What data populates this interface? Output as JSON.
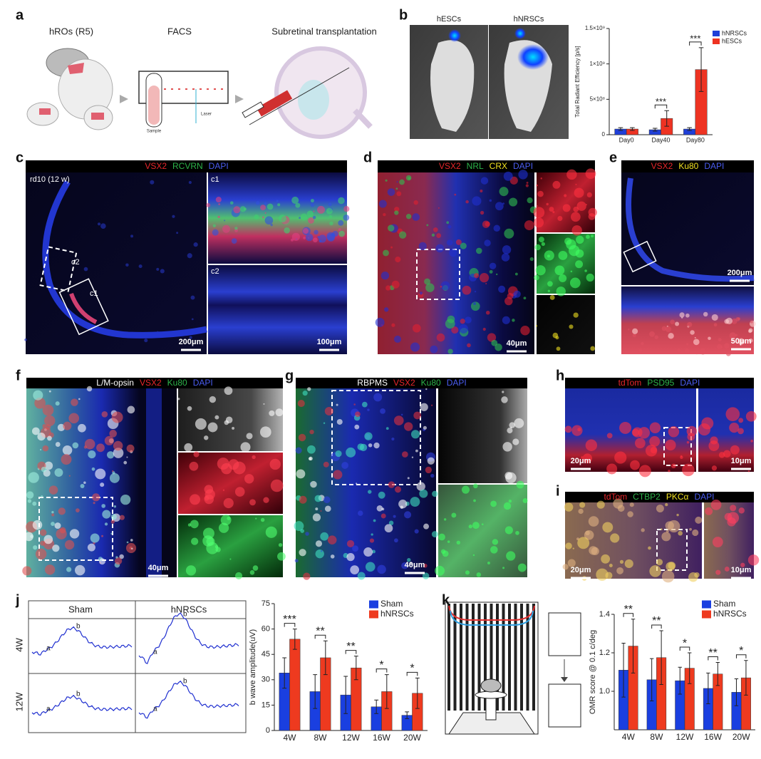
{
  "figure": {
    "a": {
      "label": "a",
      "steps": [
        "hROs (R5)",
        "FACS",
        "Subretinal transplantation"
      ],
      "sample": "Sample",
      "laser": "Laser"
    },
    "b": {
      "label": "b",
      "image_labels": [
        "hESCs",
        "hNRSCs"
      ],
      "chart": {
        "type": "bar",
        "ylabel": "Total Radiant Efficiency [p/s]",
        "categories": [
          "Day0",
          "Day40",
          "Day80"
        ],
        "series": [
          {
            "name": "hNRSCs",
            "color": "#1f3fd8",
            "values": [
              80000000,
              70000000,
              80000000
            ],
            "errors": [
              20000000,
              20000000,
              20000000
            ]
          },
          {
            "name": "hESCs",
            "color": "#ee3322",
            "values": [
              80000000,
              230000000,
              920000000
            ],
            "errors": [
              20000000,
              110000000,
              310000000
            ]
          }
        ],
        "significance": [
          null,
          "***",
          "***"
        ],
        "ylim": [
          0,
          1500000000
        ],
        "yticks": [
          0,
          {
            "value": 500000000,
            "label": "5×10⁸"
          },
          {
            "value": 1000000000,
            "label": "1×10⁹"
          },
          {
            "value": 1500000000,
            "label": "1.5×10⁹"
          }
        ],
        "legend": "upper right"
      }
    },
    "c": {
      "label": "c",
      "channels": [
        {
          "text": "VSX2",
          "color": "#e8262b"
        },
        {
          "text": "RCVRN",
          "color": "#2db34a"
        },
        {
          "text": "DAPI",
          "color": "#4a5cf0"
        }
      ],
      "insets": [
        "rd10 (12 w)",
        "c1",
        "c2"
      ],
      "scale_bars": [
        "200μm",
        "100μm"
      ]
    },
    "d": {
      "label": "d",
      "channels": [
        {
          "text": "VSX2",
          "color": "#e8262b"
        },
        {
          "text": "NRL",
          "color": "#2db34a"
        },
        {
          "text": "CRX",
          "color": "#f0e020"
        },
        {
          "text": "DAPI",
          "color": "#4a5cf0"
        }
      ],
      "scale_bars": [
        "40μm"
      ]
    },
    "e": {
      "label": "e",
      "channels": [
        {
          "text": "VSX2",
          "color": "#e8262b"
        },
        {
          "text": "Ku80",
          "color": "#f0e020"
        },
        {
          "text": "DAPI",
          "color": "#4a5cf0"
        }
      ],
      "scale_bars": [
        "200μm",
        "50μm"
      ]
    },
    "f": {
      "label": "f",
      "channels": [
        {
          "text": "L/M-opsin",
          "color": "#ffffff"
        },
        {
          "text": "VSX2",
          "color": "#e8262b"
        },
        {
          "text": "Ku80",
          "color": "#2db34a"
        },
        {
          "text": "DAPI",
          "color": "#4a5cf0"
        }
      ],
      "scale_bars": [
        "40μm"
      ]
    },
    "g": {
      "label": "g",
      "channels": [
        {
          "text": "RBPMS",
          "color": "#ffffff"
        },
        {
          "text": "VSX2",
          "color": "#e8262b"
        },
        {
          "text": "Ku80",
          "color": "#2db34a"
        },
        {
          "text": "DAPI",
          "color": "#4a5cf0"
        }
      ],
      "scale_bars": [
        "40μm"
      ]
    },
    "h": {
      "label": "h",
      "channels": [
        {
          "text": "tdTom",
          "color": "#e8262b"
        },
        {
          "text": "PSD95",
          "color": "#2db34a"
        },
        {
          "text": "DAPI",
          "color": "#4a5cf0"
        }
      ],
      "scale_bars": [
        "20μm",
        "10μm"
      ]
    },
    "i": {
      "label": "i",
      "channels": [
        {
          "text": "tdTom",
          "color": "#e8262b"
        },
        {
          "text": "CTBP2",
          "color": "#2db34a"
        },
        {
          "text": "PKCα",
          "color": "#f0e020"
        },
        {
          "text": "DAPI",
          "color": "#4a5cf0"
        }
      ],
      "scale_bars": [
        "20μm",
        "10μm"
      ]
    },
    "j": {
      "label": "j",
      "columns": [
        "Sham",
        "hNRSCs"
      ],
      "rows": [
        "4W",
        "12W"
      ],
      "trace_labels": [
        "a",
        "b"
      ],
      "chart": {
        "type": "bar",
        "ylabel": "b wave amplitude(uV)",
        "categories": [
          "4W",
          "8W",
          "12W",
          "16W",
          "20W"
        ],
        "series": [
          {
            "name": "Sham",
            "color": "#1a3fe0",
            "values": [
              34,
              23,
              21,
              14,
              9
            ],
            "errors": [
              9,
              10,
              11,
              4,
              2
            ]
          },
          {
            "name": "hNRSCs",
            "color": "#ee3a1f",
            "values": [
              54,
              43,
              37,
              23,
              22
            ],
            "errors": [
              6,
              10,
              7,
              10,
              9
            ]
          }
        ],
        "significance": [
          "***",
          "**",
          "**",
          "*",
          "*"
        ],
        "ylim": [
          0,
          75
        ],
        "yticks": [
          0,
          15,
          30,
          45,
          60,
          75
        ],
        "legend": "upper right"
      }
    },
    "k": {
      "label": "k",
      "chart": {
        "type": "bar",
        "ylabel": "OMR score @ 0.1 c/deg",
        "categories": [
          "4W",
          "8W",
          "12W",
          "16W",
          "20W"
        ],
        "series": [
          {
            "name": "Sham",
            "color": "#1a3fe0",
            "values": [
              1.11,
              1.06,
              1.055,
              1.015,
              0.995
            ],
            "errors": [
              0.14,
              0.11,
              0.07,
              0.08,
              0.07
            ]
          },
          {
            "name": "hNRSCs",
            "color": "#ee3a1f",
            "values": [
              1.235,
              1.175,
              1.12,
              1.09,
              1.07
            ],
            "errors": [
              0.14,
              0.14,
              0.08,
              0.06,
              0.09
            ]
          }
        ],
        "significance": [
          "**",
          "**",
          "*",
          "**",
          "*"
        ],
        "ylim": [
          0.8,
          1.4
        ],
        "yticks": [
          {
            "value": 1,
            "label": "1.0"
          },
          {
            "value": 1.2,
            "label": "1.2"
          },
          {
            "value": 1.4,
            "label": "1.4"
          }
        ],
        "legend": "upper right"
      }
    }
  }
}
